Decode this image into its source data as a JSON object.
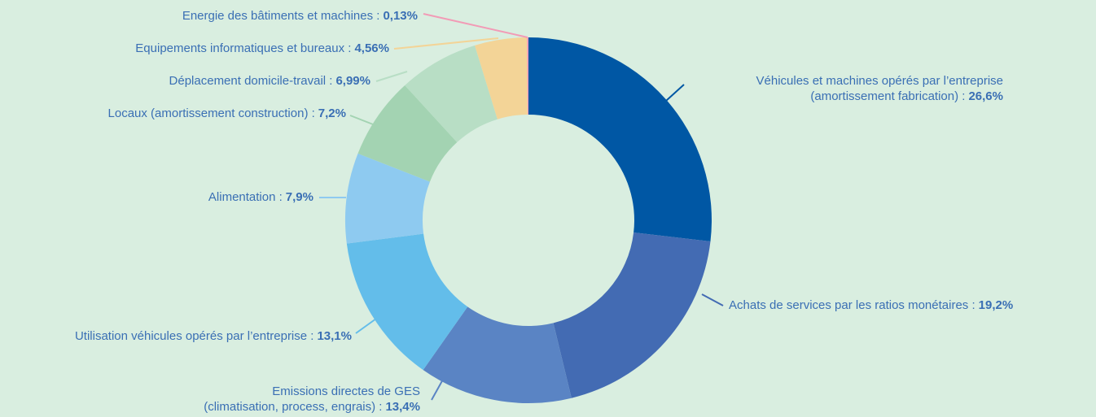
{
  "chart_data": {
    "type": "donut",
    "categories": [
      "Véhicules et machines opérés par l’entreprise\n(amortissement fabrication) :",
      "Achats de services par les ratios monétaires :",
      "Emissions directes de GES\n(climatisation, process, engrais) :",
      "Utilisation véhicules opérés par l’entreprise :",
      "Alimentation :",
      "Locaux (amortissement construction) :",
      "Déplacement domicile-travail :",
      "Equipements informatiques et bureaux :",
      "Energie des bâtiments et machines :"
    ],
    "values": [
      26.6,
      19.2,
      13.4,
      13.1,
      7.9,
      7.2,
      6.99,
      4.56,
      0.13
    ],
    "value_labels": [
      "26,6%",
      "19,2%",
      "13,4%",
      "13,1%",
      "7,9%",
      "7,2%",
      "6,99%",
      "4,56%",
      "0,13%"
    ],
    "colors": [
      "#0057a4",
      "#436bb3",
      "#5a84c4",
      "#63bdea",
      "#8ecaf0",
      "#a3d3b2",
      "#b8dec5",
      "#f3d497",
      "#f29bb6"
    ]
  }
}
